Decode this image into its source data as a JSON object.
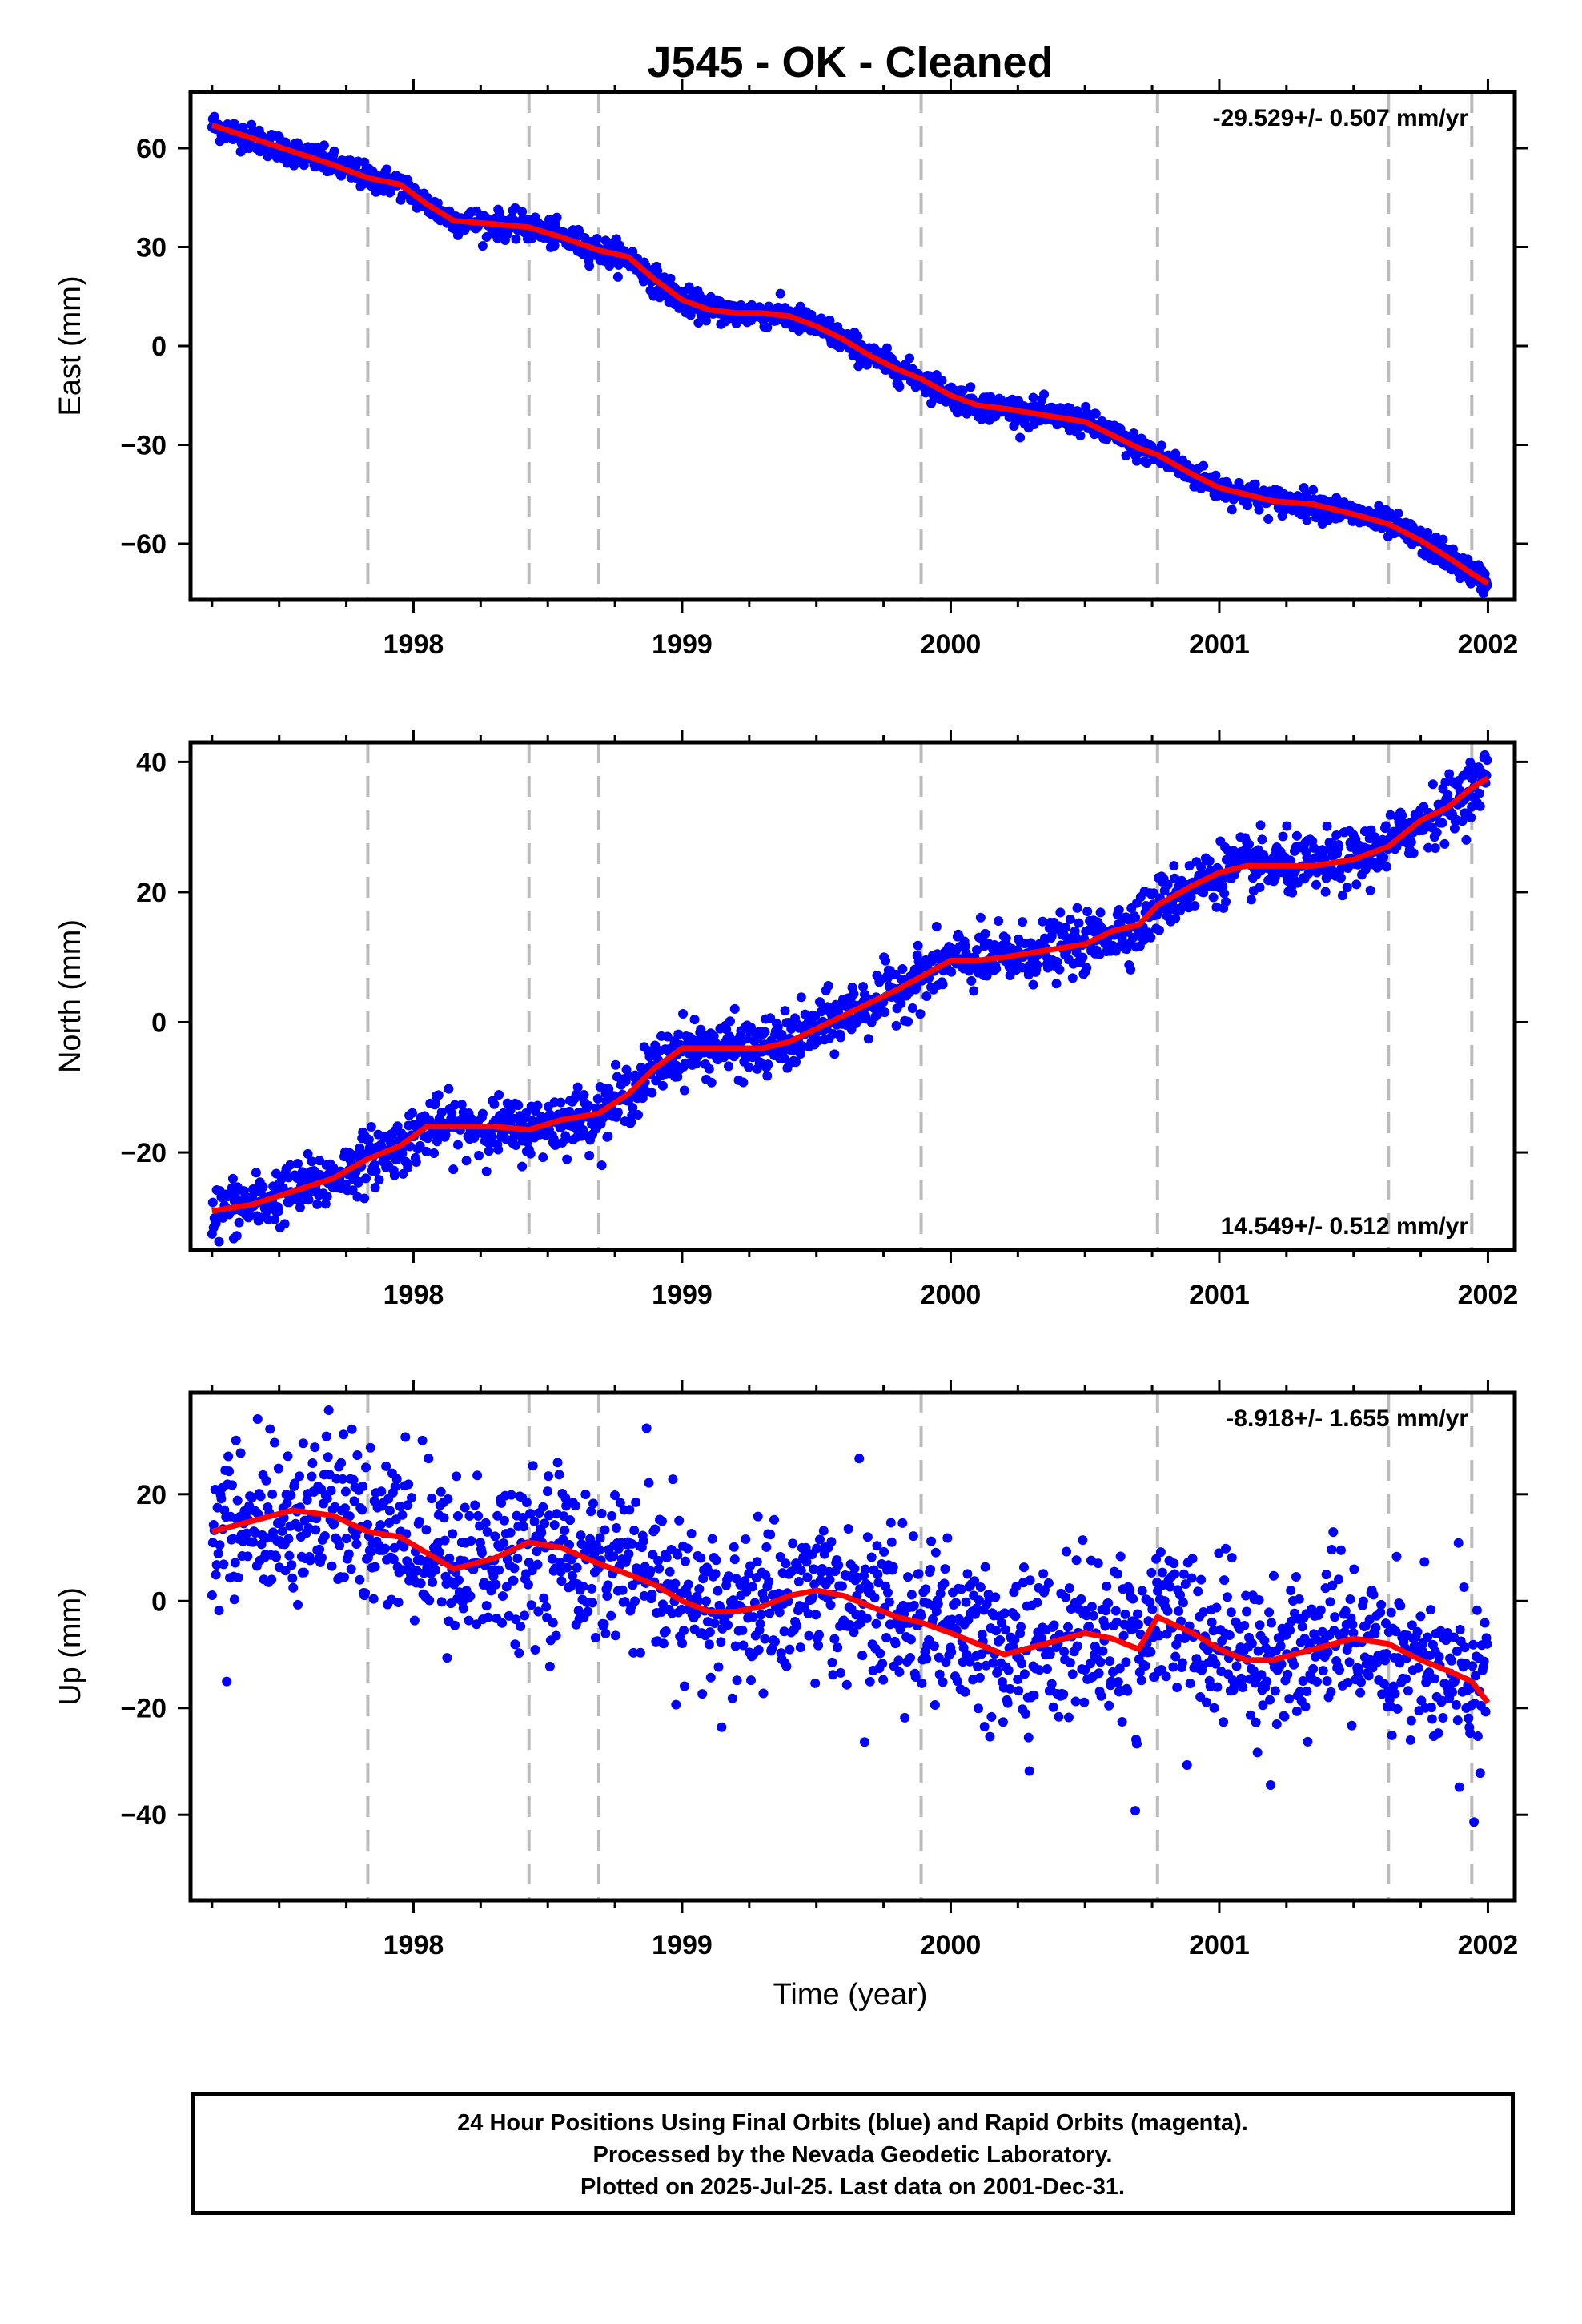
{
  "title": "J545  - OK - Cleaned",
  "xlabel": "Time (year)",
  "footer": {
    "line1": "24 Hour Positions Using Final Orbits (blue) and Rapid Orbits (magenta).",
    "line2": "Processed by the Nevada Geodetic Laboratory.",
    "line3": "Plotted on 2025-Jul-25. Last data on 2001-Dec-31."
  },
  "colors": {
    "points": "#0000ff",
    "model": "#ff0000",
    "event_lines": "#bbbbbb",
    "axes": "#000000"
  },
  "chart_data": [
    {
      "type": "scatter",
      "component": "East",
      "ylabel": "East (mm)",
      "rate_label": "-29.529+/- 0.507 mm/yr",
      "rate_position": "top-right",
      "xlim": [
        1997.17,
        2002.1
      ],
      "ylim": [
        -77,
        77
      ],
      "xticks": [
        1998,
        1999,
        2000,
        2001,
        2002
      ],
      "xtick_labels": [
        "1998",
        "1999",
        "2000",
        "2001",
        "2002"
      ],
      "yticks": [
        -60,
        -30,
        0,
        30,
        60
      ],
      "ytick_labels": [
        "−60",
        "−30",
        "0",
        "30",
        "60"
      ],
      "event_lines_x": [
        1997.83,
        1998.43,
        1998.69,
        1999.89,
        2000.77,
        2001.63,
        2001.94
      ],
      "model_x": [
        1997.25,
        1997.4,
        1997.55,
        1997.7,
        1997.83,
        1997.95,
        1998.05,
        1998.15,
        1998.3,
        1998.43,
        1998.55,
        1998.69,
        1998.8,
        1998.9,
        1999.0,
        1999.1,
        1999.2,
        1999.3,
        1999.4,
        1999.5,
        1999.6,
        1999.7,
        1999.8,
        1999.89,
        2000.0,
        2000.1,
        2000.2,
        2000.35,
        2000.5,
        2000.6,
        2000.7,
        2000.77,
        2000.9,
        2001.0,
        2001.1,
        2001.2,
        2001.35,
        2001.5,
        2001.63,
        2001.75,
        2001.85,
        2001.94,
        2002.0
      ],
      "model_y": [
        67,
        63,
        59,
        55,
        51,
        49,
        43,
        38,
        37,
        36,
        33,
        29,
        27,
        20,
        14,
        11,
        10,
        10,
        9,
        6,
        2,
        -3,
        -7,
        -10,
        -15,
        -18,
        -19,
        -21,
        -23,
        -27,
        -31,
        -33,
        -39,
        -43,
        -45,
        -47,
        -48,
        -51,
        -54,
        -59,
        -64,
        -69,
        -72
      ],
      "points": "dense daily positions (approx. 1650 samples) scattered within about ±3 mm of the model curve"
    },
    {
      "type": "scatter",
      "component": "North",
      "ylabel": "North (mm)",
      "rate_label": "14.549+/- 0.512 mm/yr",
      "rate_position": "bottom-right",
      "xlim": [
        1997.17,
        2002.1
      ],
      "ylim": [
        -35,
        43
      ],
      "xticks": [
        1998,
        1999,
        2000,
        2001,
        2002
      ],
      "xtick_labels": [
        "1998",
        "1999",
        "2000",
        "2001",
        "2002"
      ],
      "yticks": [
        -20,
        0,
        20,
        40
      ],
      "ytick_labels": [
        "−20",
        "0",
        "20",
        "40"
      ],
      "event_lines_x": [
        1997.83,
        1998.43,
        1998.69,
        1999.89,
        2000.77,
        2001.63,
        2001.94
      ],
      "model_x": [
        1997.25,
        1997.4,
        1997.55,
        1997.7,
        1997.83,
        1997.95,
        1998.05,
        1998.15,
        1998.3,
        1998.43,
        1998.55,
        1998.69,
        1998.8,
        1998.9,
        1999.0,
        1999.1,
        1999.2,
        1999.3,
        1999.4,
        1999.5,
        1999.6,
        1999.7,
        1999.8,
        1999.89,
        2000.0,
        2000.1,
        2000.2,
        2000.35,
        2000.5,
        2000.6,
        2000.7,
        2000.77,
        2000.9,
        2001.0,
        2001.1,
        2001.2,
        2001.35,
        2001.5,
        2001.63,
        2001.75,
        2001.85,
        2001.94,
        2002.0
      ],
      "model_y": [
        -29,
        -28,
        -26,
        -24,
        -21,
        -19,
        -16,
        -16,
        -16,
        -16.5,
        -15,
        -14,
        -11,
        -7,
        -4,
        -4,
        -4,
        -4,
        -3,
        -1,
        1,
        3,
        5,
        7,
        9.5,
        9.5,
        10,
        11,
        12,
        14,
        15,
        18,
        21,
        23,
        24,
        24,
        24,
        25,
        27,
        31,
        33,
        36,
        37.5
      ],
      "points": "dense daily positions (approx. 1650 samples) scattered within about ±3 mm of the model curve"
    },
    {
      "type": "scatter",
      "component": "Up",
      "ylabel": "Up (mm)",
      "rate_label": "-8.918+/- 1.655 mm/yr",
      "rate_position": "top-right",
      "xlim": [
        1997.17,
        2002.1
      ],
      "ylim": [
        -56,
        39
      ],
      "xticks": [
        1998,
        1999,
        2000,
        2001,
        2002
      ],
      "xtick_labels": [
        "1998",
        "1999",
        "2000",
        "2001",
        "2002"
      ],
      "yticks": [
        -40,
        -20,
        0,
        20
      ],
      "ytick_labels": [
        "−40",
        "−20",
        "0",
        "20"
      ],
      "event_lines_x": [
        1997.83,
        1998.43,
        1998.69,
        1999.89,
        2000.77,
        2001.63,
        2001.94
      ],
      "model_x": [
        1997.25,
        1997.4,
        1997.55,
        1997.7,
        1997.83,
        1997.95,
        1998.05,
        1998.15,
        1998.3,
        1998.43,
        1998.55,
        1998.69,
        1998.8,
        1998.9,
        1999.0,
        1999.1,
        1999.2,
        1999.3,
        1999.4,
        1999.5,
        1999.6,
        1999.7,
        1999.8,
        1999.89,
        2000.0,
        2000.1,
        2000.2,
        2000.35,
        2000.5,
        2000.6,
        2000.7,
        2000.77,
        2000.9,
        2001.0,
        2001.1,
        2001.2,
        2001.35,
        2001.5,
        2001.63,
        2001.75,
        2001.85,
        2001.94,
        2002.0
      ],
      "model_y": [
        13,
        15,
        17,
        16,
        13,
        12,
        9,
        6,
        8,
        11,
        10,
        7,
        5,
        3,
        0,
        -2,
        -2,
        -1,
        1,
        2,
        1,
        -1,
        -3,
        -4,
        -6,
        -8,
        -10,
        -8,
        -6,
        -7,
        -9,
        -3,
        -6,
        -9,
        -11,
        -11,
        -9,
        -7,
        -8,
        -11,
        -13,
        -15,
        -19
      ],
      "points": "dense daily positions (approx. 1650 samples) scattered within about ±10 mm of the model curve, with a few outliers"
    }
  ]
}
